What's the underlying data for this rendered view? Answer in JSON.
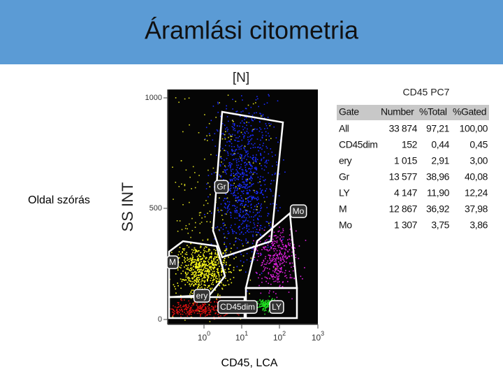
{
  "title": "Áramlási citometria",
  "left_label": "Oldal szórás",
  "bottom_label": "CD45, LCA",
  "plot": {
    "top_label": "[N]",
    "y_axis_title": "SS INT",
    "y_ticks": [
      "1000",
      "500",
      "0"
    ],
    "x_ticks": [
      {
        "base": "10",
        "exp": "0"
      },
      {
        "base": "10",
        "exp": "1"
      },
      {
        "base": "10",
        "exp": "2"
      },
      {
        "base": "10",
        "exp": "3"
      }
    ],
    "gates": [
      "Gr",
      "Mo",
      "M",
      "ery",
      "CD45dim",
      "LY"
    ]
  },
  "table": {
    "title": "CD45 PC7",
    "header": [
      "Gate",
      "Number",
      "%Total",
      "%Gated"
    ],
    "rows": [
      [
        "All",
        "33 874",
        "97,21",
        "100,00"
      ],
      [
        "CD45dim",
        "152",
        "0,44",
        "0,45"
      ],
      [
        "ery",
        "1 015",
        "2,91",
        "3,00"
      ],
      [
        "Gr",
        "13 577",
        "38,96",
        "40,08"
      ],
      [
        "LY",
        "4 147",
        "11,90",
        "12,24"
      ],
      [
        "M",
        "12 867",
        "36,92",
        "37,98"
      ],
      [
        "Mo",
        "1 307",
        "3,75",
        "3,86"
      ]
    ]
  }
}
